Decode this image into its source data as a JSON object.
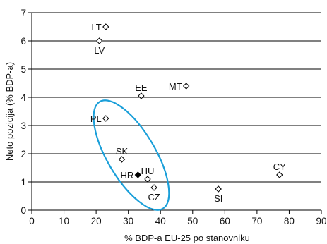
{
  "chart_data": {
    "type": "scatter",
    "title": "",
    "xlabel": "% BDP-a EU-25 po stanovniku",
    "ylabel": "Neto pozicija (% BDP-a)",
    "xlim": [
      0,
      90
    ],
    "ylim": [
      0,
      7
    ],
    "xticks": [
      "0",
      "10",
      "20",
      "30",
      "40",
      "50",
      "60",
      "70",
      "80",
      "90"
    ],
    "yticks": [
      "0",
      "1",
      "2",
      "3",
      "4",
      "5",
      "6",
      "7"
    ],
    "grid": "horizontal",
    "points": [
      {
        "label": "LT",
        "x": 23,
        "y": 6.5,
        "filled": false,
        "label_pos": "left"
      },
      {
        "label": "LV",
        "x": 21,
        "y": 6.0,
        "filled": false,
        "label_pos": "below"
      },
      {
        "label": "EE",
        "x": 34,
        "y": 4.05,
        "filled": false,
        "label_pos": "above"
      },
      {
        "label": "MT",
        "x": 48,
        "y": 4.4,
        "filled": false,
        "label_pos": "left"
      },
      {
        "label": "PL",
        "x": 23,
        "y": 3.25,
        "filled": false,
        "label_pos": "left"
      },
      {
        "label": "SK",
        "x": 28,
        "y": 1.8,
        "filled": false,
        "label_pos": "above"
      },
      {
        "label": "HR",
        "x": 33,
        "y": 1.25,
        "filled": true,
        "label_pos": "left"
      },
      {
        "label": "HU",
        "x": 36,
        "y": 1.1,
        "filled": false,
        "label_pos": "above"
      },
      {
        "label": "CZ",
        "x": 38,
        "y": 0.8,
        "filled": false,
        "label_pos": "below"
      },
      {
        "label": "SI",
        "x": 58,
        "y": 0.75,
        "filled": false,
        "label_pos": "below"
      },
      {
        "label": "CY",
        "x": 77,
        "y": 1.25,
        "filled": false,
        "label_pos": "above"
      }
    ],
    "highlight_ellipse": {
      "color": "#1a9fd9",
      "encloses": [
        "PL",
        "SK",
        "HR",
        "HU",
        "CZ"
      ]
    }
  }
}
